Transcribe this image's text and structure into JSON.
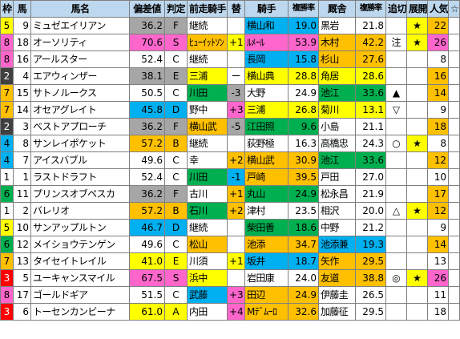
{
  "headers": [
    "枠",
    "馬",
    "馬名",
    "偏差値",
    "判定",
    "前走騎手",
    "替",
    "騎手",
    "複勝率",
    "厩舎",
    "複勝率",
    "追切",
    "展開",
    "人気",
    "☆"
  ],
  "colors": {
    "header": "#bdd7ee",
    "green": "#00b050",
    "pink": "#ff66cc",
    "yellow": "#ffff00",
    "orange": "#ffc000",
    "blue": "#00b0f0",
    "gray": "#a6a6a6",
    "white": "#ffffff",
    "frame1": "#ffffff",
    "frame2": "#404040",
    "frame3": "#ff0000",
    "frame4": "#00b0f0",
    "frame5": "#ffff00",
    "frame6": "#00b050",
    "frame7": "#ffc000",
    "frame8": "#ff66cc"
  },
  "rows": [
    {
      "waku": "5",
      "uma": "9",
      "name": "ミュゼエイリアン",
      "score": "36.2",
      "grade": "F",
      "prev_jockey": "継続",
      "change": "",
      "jockey": "横山和",
      "j_rate": "19.0",
      "stable": "黒岩",
      "s_rate": "21.8",
      "oikiri": "",
      "tenkai": "★",
      "ninki": "22",
      "star": ""
    },
    {
      "waku": "8",
      "uma": "18",
      "name": "オーソリティ",
      "score": "70.6",
      "grade": "S",
      "prev_jockey": "ﾋｭｰｲｯﾄｿﾝ",
      "change": "+1",
      "jockey": "ﾙﾒｰﾙ",
      "j_rate": "53.9",
      "stable": "木村",
      "s_rate": "42.2",
      "oikiri": "注",
      "tenkai": "★",
      "ninki": "26",
      "star": ""
    },
    {
      "waku": "8",
      "uma": "16",
      "name": "アールスター",
      "score": "52.4",
      "grade": "C",
      "prev_jockey": "継続",
      "change": "",
      "jockey": "長岡",
      "j_rate": "15.8",
      "stable": "杉山",
      "s_rate": "27.6",
      "oikiri": "",
      "tenkai": "",
      "ninki": "8",
      "star": ""
    },
    {
      "waku": "2",
      "uma": "4",
      "name": "エアウィンザー",
      "score": "38.1",
      "grade": "E",
      "prev_jockey": "三浦",
      "change": "ー",
      "jockey": "横山典",
      "j_rate": "28.8",
      "stable": "角居",
      "s_rate": "28.6",
      "oikiri": "",
      "tenkai": "",
      "ninki": "16",
      "star": ""
    },
    {
      "waku": "7",
      "uma": "15",
      "name": "サトノルークス",
      "score": "50.5",
      "grade": "C",
      "prev_jockey": "川田",
      "change": "-3",
      "jockey": "大野",
      "j_rate": "24.9",
      "stable": "池江",
      "s_rate": "33.6",
      "oikiri": "▲",
      "tenkai": "",
      "ninki": "14",
      "star": ""
    },
    {
      "waku": "7",
      "uma": "14",
      "name": "オセアグレイト",
      "score": "45.8",
      "grade": "D",
      "prev_jockey": "野中",
      "change": "+3",
      "jockey": "三浦",
      "j_rate": "26.8",
      "stable": "菊川",
      "s_rate": "13.1",
      "oikiri": "▽",
      "tenkai": "",
      "ninki": "9",
      "star": ""
    },
    {
      "waku": "2",
      "uma": "3",
      "name": "ベストアプローチ",
      "score": "36.2",
      "grade": "F",
      "prev_jockey": "横山武",
      "change": "-5",
      "jockey": "江田照",
      "j_rate": "9.6",
      "stable": "小島",
      "s_rate": "21.1",
      "oikiri": "",
      "tenkai": "",
      "ninki": "18",
      "star": ""
    },
    {
      "waku": "4",
      "uma": "8",
      "name": "サンレイポケット",
      "score": "57.2",
      "grade": "B",
      "prev_jockey": "継続",
      "change": "",
      "jockey": "荻野極",
      "j_rate": "16.3",
      "stable": "高橋忠",
      "s_rate": "24.3",
      "oikiri": "○",
      "tenkai": "★",
      "ninki": "8",
      "star": ""
    },
    {
      "waku": "4",
      "uma": "7",
      "name": "アイスバブル",
      "score": "49.6",
      "grade": "C",
      "prev_jockey": "幸",
      "change": "+2",
      "jockey": "横山武",
      "j_rate": "30.9",
      "stable": "池江",
      "s_rate": "33.6",
      "oikiri": "",
      "tenkai": "",
      "ninki": "12",
      "star": ""
    },
    {
      "waku": "1",
      "uma": "1",
      "name": "ラストドラフト",
      "score": "52.4",
      "grade": "C",
      "prev_jockey": "川田",
      "change": "-1",
      "jockey": "戸崎",
      "j_rate": "39.5",
      "stable": "戸田",
      "s_rate": "27.0",
      "oikiri": "",
      "tenkai": "",
      "ninki": "10",
      "star": ""
    },
    {
      "waku": "6",
      "uma": "11",
      "name": "プリンスオブペスカ",
      "score": "36.2",
      "grade": "F",
      "prev_jockey": "古川",
      "change": "+1",
      "jockey": "丸山",
      "j_rate": "24.9",
      "stable": "松永昌",
      "s_rate": "21.9",
      "oikiri": "",
      "tenkai": "",
      "ninki": "17",
      "star": ""
    },
    {
      "waku": "1",
      "uma": "2",
      "name": "バレリオ",
      "score": "57.2",
      "grade": "B",
      "prev_jockey": "石川",
      "change": "+2",
      "jockey": "津村",
      "j_rate": "23.5",
      "stable": "相沢",
      "s_rate": "20.0",
      "oikiri": "△",
      "tenkai": "★",
      "ninki": "12",
      "star": ""
    },
    {
      "waku": "5",
      "uma": "10",
      "name": "サンアップルトン",
      "score": "46.7",
      "grade": "D",
      "prev_jockey": "継続",
      "change": "",
      "jockey": "柴田善",
      "j_rate": "18.6",
      "stable": "中野",
      "s_rate": "21.2",
      "oikiri": "",
      "tenkai": "",
      "ninki": "9",
      "star": ""
    },
    {
      "waku": "6",
      "uma": "12",
      "name": "メイショウテンゲン",
      "score": "49.6",
      "grade": "C",
      "prev_jockey": "松山",
      "change": "",
      "jockey": "池添",
      "j_rate": "34.7",
      "stable": "池添兼",
      "s_rate": "19.3",
      "oikiri": "",
      "tenkai": "",
      "ninki": "14",
      "star": ""
    },
    {
      "waku": "7",
      "uma": "13",
      "name": "タイセイトレイル",
      "score": "41.0",
      "grade": "E",
      "prev_jockey": "川須",
      "change": "+1",
      "jockey": "坂井",
      "j_rate": "18.7",
      "stable": "矢作",
      "s_rate": "29.5",
      "oikiri": "",
      "tenkai": "",
      "ninki": "13",
      "star": ""
    },
    {
      "waku": "3",
      "uma": "5",
      "name": "ユーキャンスマイル",
      "score": "67.5",
      "grade": "S",
      "prev_jockey": "浜中",
      "change": "",
      "jockey": "岩田康",
      "j_rate": "24.0",
      "stable": "友道",
      "s_rate": "38.8",
      "oikiri": "◎",
      "tenkai": "★",
      "ninki": "26",
      "star": ""
    },
    {
      "waku": "8",
      "uma": "17",
      "name": "ゴールドギア",
      "score": "51.5",
      "grade": "C",
      "prev_jockey": "武藤",
      "change": "+3",
      "jockey": "田辺",
      "j_rate": "24.9",
      "stable": "伊藤圭",
      "s_rate": "26.5",
      "oikiri": "",
      "tenkai": "",
      "ninki": "11",
      "star": ""
    },
    {
      "waku": "3",
      "uma": "6",
      "name": "トーセンカンビーナ",
      "score": "61.0",
      "grade": "A",
      "prev_jockey": "内田",
      "change": "+4",
      "jockey": "Mﾃﾞﾑｰﾛ",
      "j_rate": "32.6",
      "stable": "加藤征",
      "s_rate": "29.5",
      "oikiri": "",
      "tenkai": "",
      "ninki": "18",
      "star": ""
    }
  ],
  "styles": [
    {
      "score": "gray",
      "prev": "white",
      "change": "white",
      "jockey": "blue",
      "stable": "white",
      "ninki": "orange"
    },
    {
      "score": "pink",
      "prev": "orange",
      "change": "yellow",
      "jockey": "pink",
      "stable": "orange",
      "ninki": "pink"
    },
    {
      "score": "white",
      "prev": "white",
      "change": "white",
      "jockey": "blue",
      "stable": "orange",
      "ninki": "white"
    },
    {
      "score": "gray",
      "prev": "yellow",
      "change": "white",
      "jockey": "yellow",
      "stable": "yellow",
      "ninki": "orange"
    },
    {
      "score": "white",
      "prev": "green",
      "change": "gray",
      "jockey": "white",
      "stable": "green",
      "ninki": "orange"
    },
    {
      "score": "blue",
      "prev": "white",
      "change": "pink",
      "jockey": "yellow",
      "stable": "yellow",
      "ninki": "white"
    },
    {
      "score": "gray",
      "prev": "orange",
      "change": "gray",
      "jockey": "green",
      "stable": "white",
      "ninki": "orange"
    },
    {
      "score": "orange",
      "prev": "white",
      "change": "white",
      "jockey": "white",
      "stable": "white",
      "ninki": "white"
    },
    {
      "score": "white",
      "prev": "white",
      "change": "orange",
      "jockey": "orange",
      "stable": "green",
      "ninki": "orange"
    },
    {
      "score": "white",
      "prev": "green",
      "change": "blue",
      "jockey": "orange",
      "stable": "white",
      "ninki": "white"
    },
    {
      "score": "gray",
      "prev": "white",
      "change": "orange",
      "jockey": "green",
      "stable": "white",
      "ninki": "orange"
    },
    {
      "score": "orange",
      "prev": "green",
      "change": "orange",
      "jockey": "white",
      "stable": "white",
      "ninki": "orange"
    },
    {
      "score": "blue",
      "prev": "white",
      "change": "white",
      "jockey": "green",
      "stable": "white",
      "ninki": "white"
    },
    {
      "score": "white",
      "prev": "orange",
      "change": "white",
      "jockey": "orange",
      "stable": "blue",
      "ninki": "orange"
    },
    {
      "score": "yellow",
      "prev": "white",
      "change": "yellow",
      "jockey": "blue",
      "stable": "orange",
      "ninki": "white"
    },
    {
      "score": "pink",
      "prev": "yellow",
      "change": "white",
      "jockey": "white",
      "stable": "orange",
      "ninki": "pink"
    },
    {
      "score": "white",
      "prev": "blue",
      "change": "pink",
      "jockey": "orange",
      "stable": "white",
      "ninki": "white"
    },
    {
      "score": "yellow",
      "prev": "white",
      "change": "pink",
      "jockey": "orange",
      "stable": "white",
      "ninki": "white"
    }
  ]
}
